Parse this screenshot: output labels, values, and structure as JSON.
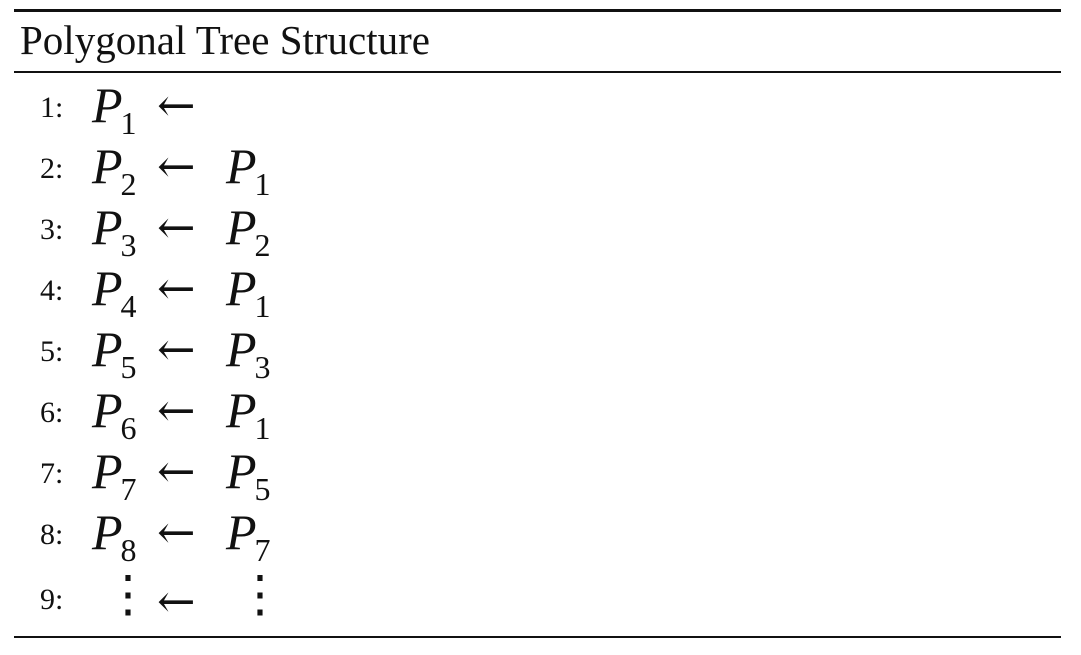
{
  "title": "Polygonal Tree Structure",
  "arrow": "←",
  "rows": [
    {
      "num": "1:",
      "lhs_base": "P",
      "lhs_sub": "1",
      "rhs_base": "",
      "rhs_sub": ""
    },
    {
      "num": "2:",
      "lhs_base": "P",
      "lhs_sub": "2",
      "rhs_base": "P",
      "rhs_sub": "1"
    },
    {
      "num": "3:",
      "lhs_base": "P",
      "lhs_sub": "3",
      "rhs_base": "P",
      "rhs_sub": "2"
    },
    {
      "num": "4:",
      "lhs_base": "P",
      "lhs_sub": "4",
      "rhs_base": "P",
      "rhs_sub": "1"
    },
    {
      "num": "5:",
      "lhs_base": "P",
      "lhs_sub": "5",
      "rhs_base": "P",
      "rhs_sub": "3"
    },
    {
      "num": "6:",
      "lhs_base": "P",
      "lhs_sub": "6",
      "rhs_base": "P",
      "rhs_sub": "1"
    },
    {
      "num": "7:",
      "lhs_base": "P",
      "lhs_sub": "7",
      "rhs_base": "P",
      "rhs_sub": "5"
    },
    {
      "num": "8:",
      "lhs_base": "P",
      "lhs_sub": "8",
      "rhs_base": "P",
      "rhs_sub": "7"
    }
  ],
  "last_row": {
    "num": "9:",
    "lhs": "⋮",
    "rhs": "⋮"
  }
}
